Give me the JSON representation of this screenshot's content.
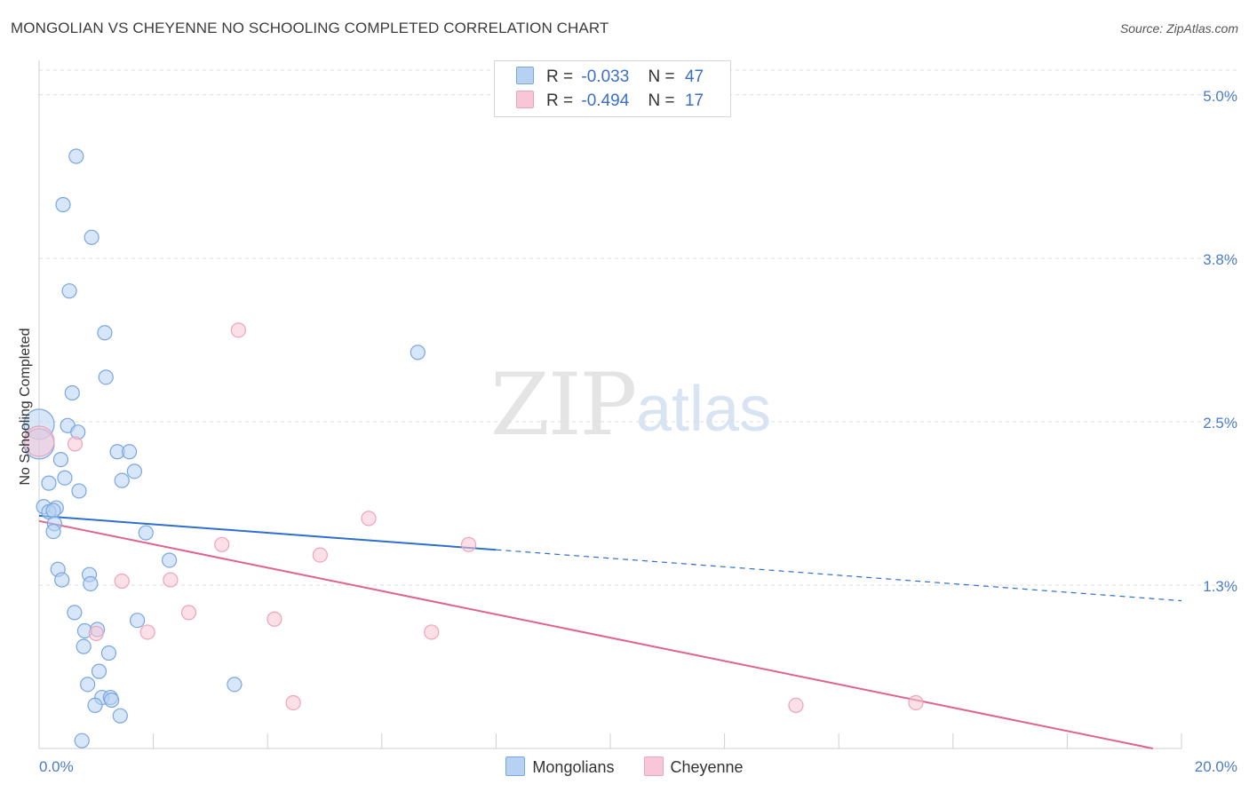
{
  "header": {
    "title": "MONGOLIAN VS CHEYENNE NO SCHOOLING COMPLETED CORRELATION CHART",
    "source": "Source: ZipAtlas.com"
  },
  "watermark": {
    "zip": "ZIP",
    "atlas": "atlas"
  },
  "colors": {
    "mongolian_fill": "#b7d1f2",
    "mongolian_stroke": "#7aa6e0",
    "mongolian_line": "#2d6fcf",
    "cheyenne_fill": "#f8c6d6",
    "cheyenne_stroke": "#eea3bb",
    "cheyenne_line": "#e0628e",
    "tick": "#4a7cc9",
    "grid": "#dddddd"
  },
  "legend": {
    "rows": [
      {
        "r_label": "R =",
        "r_value": "-0.033",
        "n_label": "N =",
        "n_value": "47"
      },
      {
        "r_label": "R =",
        "r_value": "-0.494",
        "n_label": "N =",
        "n_value": "17"
      }
    ],
    "series": [
      "Mongolians",
      "Cheyenne"
    ]
  },
  "chart_data": {
    "type": "scatter",
    "title": "MONGOLIAN VS CHEYENNE NO SCHOOLING COMPLETED CORRELATION CHART",
    "xlabel": "",
    "ylabel": "No Schooling Completed",
    "xlim": [
      0,
      20
    ],
    "ylim": [
      0,
      5.25
    ],
    "x_tick_labels": [
      "0.0%",
      "20.0%"
    ],
    "y_ticks": [
      1.25,
      2.5,
      3.75,
      5.0
    ],
    "y_tick_labels": [
      "1.3%",
      "2.5%",
      "3.8%",
      "5.0%"
    ],
    "grid": true,
    "legend_position": "top-center",
    "series": [
      {
        "name": "Mongolians",
        "r": -0.033,
        "n": 47,
        "points": [
          {
            "x": 0.65,
            "y": 4.53
          },
          {
            "x": 0.42,
            "y": 4.16
          },
          {
            "x": 0.92,
            "y": 3.91
          },
          {
            "x": 0.53,
            "y": 3.5
          },
          {
            "x": 1.15,
            "y": 3.18
          },
          {
            "x": 1.17,
            "y": 2.84
          },
          {
            "x": 0.58,
            "y": 2.72
          },
          {
            "x": 0.5,
            "y": 2.47
          },
          {
            "x": 0.68,
            "y": 2.42
          },
          {
            "x": 0.0,
            "y": 2.48,
            "size": "large"
          },
          {
            "x": 0.0,
            "y": 2.33,
            "size": "large"
          },
          {
            "x": 1.37,
            "y": 2.27
          },
          {
            "x": 1.58,
            "y": 2.27
          },
          {
            "x": 0.38,
            "y": 2.21
          },
          {
            "x": 1.67,
            "y": 2.12
          },
          {
            "x": 0.45,
            "y": 2.07
          },
          {
            "x": 1.45,
            "y": 2.05
          },
          {
            "x": 0.17,
            "y": 2.03
          },
          {
            "x": 0.7,
            "y": 1.97
          },
          {
            "x": 0.08,
            "y": 1.85
          },
          {
            "x": 0.3,
            "y": 1.84
          },
          {
            "x": 0.17,
            "y": 1.81
          },
          {
            "x": 0.25,
            "y": 1.82
          },
          {
            "x": 0.27,
            "y": 1.72
          },
          {
            "x": 0.25,
            "y": 1.66
          },
          {
            "x": 1.87,
            "y": 1.65
          },
          {
            "x": 2.28,
            "y": 1.44
          },
          {
            "x": 0.33,
            "y": 1.37
          },
          {
            "x": 0.88,
            "y": 1.33
          },
          {
            "x": 0.4,
            "y": 1.29
          },
          {
            "x": 0.9,
            "y": 1.26
          },
          {
            "x": 6.63,
            "y": 3.03
          },
          {
            "x": 0.62,
            "y": 1.04
          },
          {
            "x": 1.72,
            "y": 0.98
          },
          {
            "x": 0.8,
            "y": 0.9
          },
          {
            "x": 1.02,
            "y": 0.91
          },
          {
            "x": 0.78,
            "y": 0.78
          },
          {
            "x": 1.22,
            "y": 0.73
          },
          {
            "x": 1.05,
            "y": 0.59
          },
          {
            "x": 0.85,
            "y": 0.49
          },
          {
            "x": 3.42,
            "y": 0.49
          },
          {
            "x": 1.1,
            "y": 0.39
          },
          {
            "x": 1.25,
            "y": 0.39
          },
          {
            "x": 1.27,
            "y": 0.37
          },
          {
            "x": 0.98,
            "y": 0.33
          },
          {
            "x": 1.42,
            "y": 0.25
          },
          {
            "x": 0.75,
            "y": 0.06
          }
        ],
        "trend": {
          "x0": 0,
          "y0": 1.78,
          "x1": 8.0,
          "y1": 1.52,
          "dashed_to_x": 20,
          "dashed_to_y": 1.13
        }
      },
      {
        "name": "Cheyenne",
        "r": -0.494,
        "n": 17,
        "points": [
          {
            "x": 3.49,
            "y": 3.2
          },
          {
            "x": 0.63,
            "y": 2.33
          },
          {
            "x": 5.77,
            "y": 1.76
          },
          {
            "x": 3.2,
            "y": 1.56
          },
          {
            "x": 7.52,
            "y": 1.56
          },
          {
            "x": 4.92,
            "y": 1.48
          },
          {
            "x": 1.45,
            "y": 1.28
          },
          {
            "x": 2.3,
            "y": 1.29
          },
          {
            "x": 2.62,
            "y": 1.04
          },
          {
            "x": 4.12,
            "y": 0.99
          },
          {
            "x": 1.0,
            "y": 0.88
          },
          {
            "x": 1.9,
            "y": 0.89
          },
          {
            "x": 6.87,
            "y": 0.89
          },
          {
            "x": 4.45,
            "y": 0.35
          },
          {
            "x": 13.25,
            "y": 0.33
          },
          {
            "x": 15.35,
            "y": 0.35
          },
          {
            "x": 0.0,
            "y": 2.35,
            "size": "large"
          }
        ],
        "trend": {
          "x0": 0,
          "y0": 1.74,
          "x1": 19.5,
          "y1": 0.0
        }
      }
    ]
  }
}
